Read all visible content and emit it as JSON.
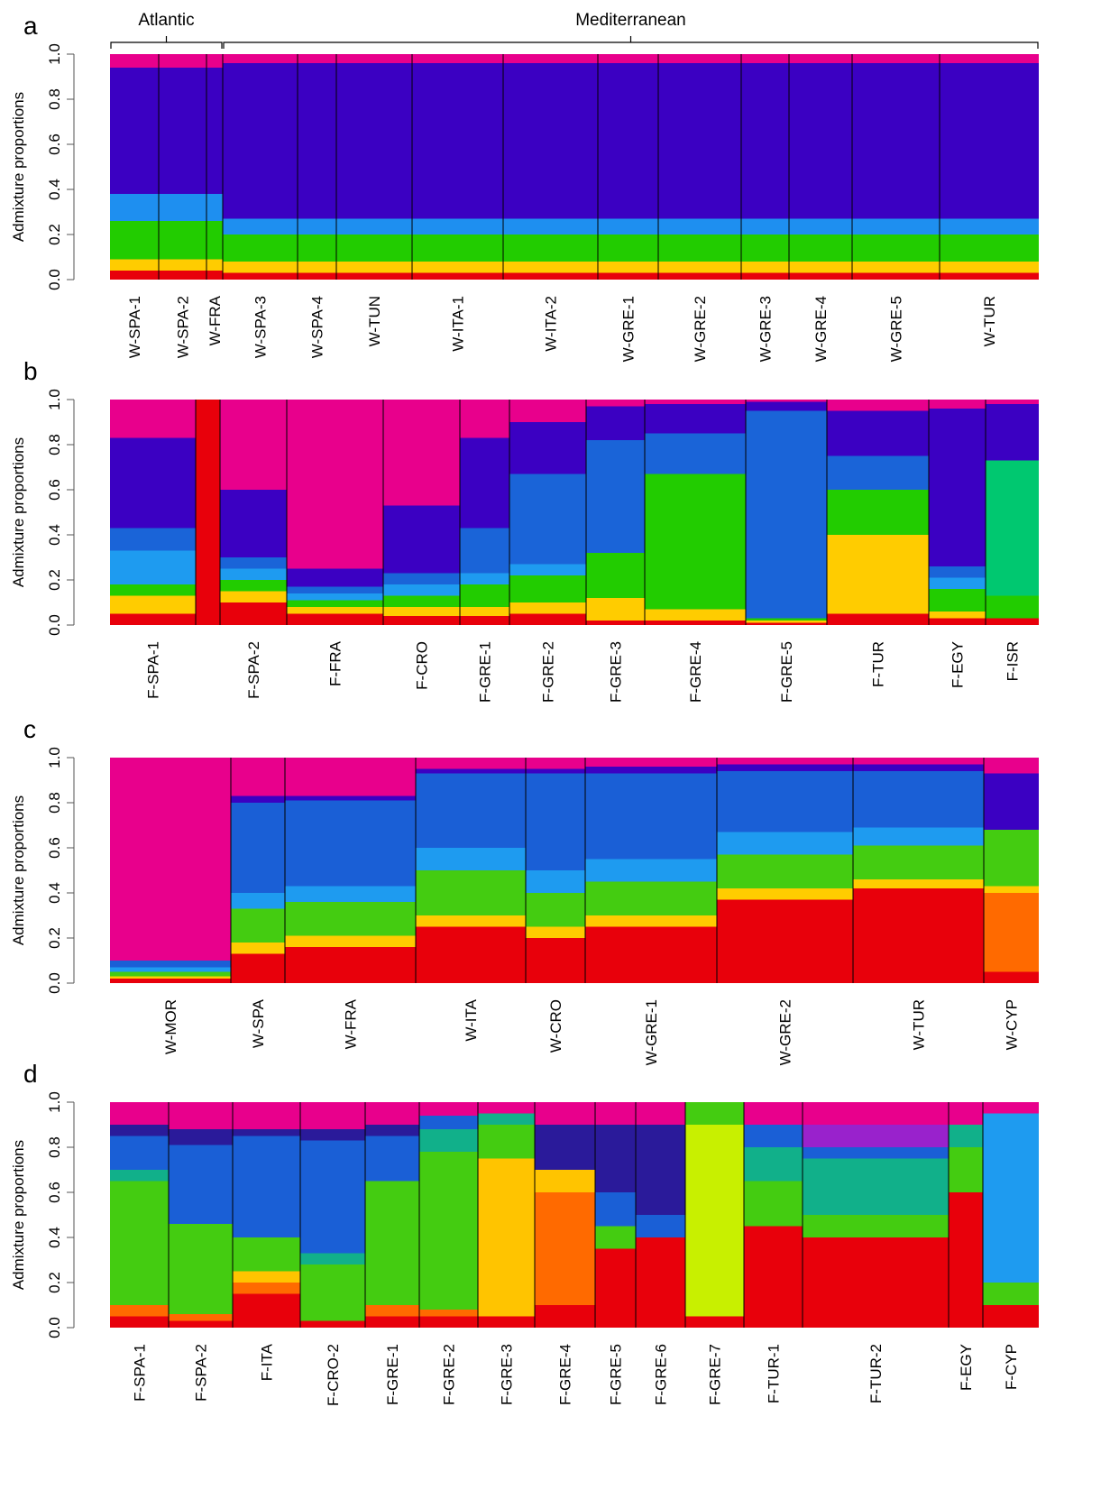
{
  "chart_data": [
    {
      "type": "stacked-bar",
      "panel": "a",
      "ylabel": "Admixture proportions",
      "brackets": [
        {
          "label": "Atlantic"
        },
        {
          "label": "Mediterranean"
        }
      ],
      "categories": [
        "W-SPA-1",
        "W-SPA-2",
        "W-FRA",
        "W-SPA-3",
        "W-SPA-4",
        "W-TUN",
        "W-ITA-1",
        "W-ITA-2",
        "W-GRE-1",
        "W-GRE-2",
        "W-GRE-3",
        "W-GRE-4",
        "W-GRE-5",
        "W-TUR"
      ],
      "ylim": [
        0,
        1
      ],
      "yticks": [
        {
          "value": 0,
          "label": "0.0"
        },
        {
          "value": 0.2,
          "label": "0.2"
        },
        {
          "value": 0.4,
          "label": "0.4"
        },
        {
          "value": 0.6,
          "label": "0.6"
        },
        {
          "value": 0.8,
          "label": "0.8"
        },
        {
          "value": 1,
          "label": "1.0"
        }
      ],
      "series": [
        {
          "color": "#e8000b",
          "values": [
            0.04,
            0.04,
            0.04,
            0.03,
            0.03,
            0.03,
            0.03,
            0.03,
            0.03,
            0.03,
            0.03,
            0.03,
            0.03,
            0.03
          ]
        },
        {
          "color": "#ffcc00",
          "values": [
            0.05,
            0.05,
            0.05,
            0.05,
            0.05,
            0.05,
            0.05,
            0.05,
            0.05,
            0.05,
            0.05,
            0.05,
            0.05,
            0.05
          ]
        },
        {
          "color": "#22cc00",
          "values": [
            0.17,
            0.17,
            0.17,
            0.12,
            0.12,
            0.12,
            0.12,
            0.12,
            0.12,
            0.12,
            0.12,
            0.12,
            0.12,
            0.12
          ]
        },
        {
          "color": "#1e8ff0",
          "values": [
            0.12,
            0.12,
            0.12,
            0.07,
            0.07,
            0.07,
            0.07,
            0.07,
            0.07,
            0.07,
            0.07,
            0.07,
            0.07,
            0.07
          ]
        },
        {
          "color": "#3b00c2",
          "values": [
            0.56,
            0.56,
            0.56,
            0.69,
            0.69,
            0.69,
            0.69,
            0.69,
            0.69,
            0.69,
            0.69,
            0.69,
            0.69,
            0.69
          ]
        },
        {
          "color": "#e8008c",
          "values": [
            0.06,
            0.06,
            0.06,
            0.04,
            0.04,
            0.04,
            0.04,
            0.04,
            0.04,
            0.04,
            0.04,
            0.04,
            0.04,
            0.04
          ]
        }
      ]
    },
    {
      "type": "stacked-bar",
      "panel": "b",
      "ylabel": "Admixture proportions",
      "categories": [
        "F-SPA-1",
        null,
        "F-SPA-2",
        "F-FRA",
        "F-CRO",
        "F-GRE-1",
        "F-GRE-2",
        "F-GRE-3",
        "F-GRE-4",
        "F-GRE-5",
        "F-TUR",
        "F-EGY",
        "F-ISR"
      ],
      "ylim": [
        0,
        1
      ],
      "yticks": [
        {
          "value": 0,
          "label": "0.0"
        },
        {
          "value": 0.2,
          "label": "0.2"
        },
        {
          "value": 0.4,
          "label": "0.4"
        },
        {
          "value": 0.6,
          "label": "0.6"
        },
        {
          "value": 0.8,
          "label": "0.8"
        },
        {
          "value": 1,
          "label": "1.0"
        }
      ],
      "series": [
        {
          "color": "#e8000b",
          "values": [
            0.05,
            1,
            0.1,
            0.05,
            0.04,
            0.04,
            0.05,
            0.02,
            0.02,
            0.01,
            0.05,
            0.03,
            0.03
          ]
        },
        {
          "color": "#ffcc00",
          "values": [
            0.08,
            0,
            0.05,
            0.03,
            0.04,
            0.04,
            0.05,
            0.1,
            0.05,
            0.01,
            0.35,
            0.03,
            0
          ]
        },
        {
          "color": "#22cc00",
          "values": [
            0.05,
            0,
            0.05,
            0.03,
            0.05,
            0.1,
            0.12,
            0.2,
            0.6,
            0.01,
            0.2,
            0.1,
            0.1
          ]
        },
        {
          "color": "#00c870",
          "values": [
            0,
            0,
            0,
            0,
            0,
            0,
            0,
            0,
            0,
            0,
            0,
            0,
            0.6
          ]
        },
        {
          "color": "#1e9bf0",
          "values": [
            0.15,
            0,
            0.05,
            0.03,
            0.05,
            0.05,
            0.05,
            0,
            0,
            0,
            0,
            0.05,
            0
          ]
        },
        {
          "color": "#1a64d8",
          "values": [
            0.1,
            0,
            0.05,
            0.03,
            0.05,
            0.2,
            0.4,
            0.5,
            0.18,
            0.92,
            0.15,
            0.05,
            0
          ]
        },
        {
          "color": "#3b00c2",
          "values": [
            0.4,
            0,
            0.3,
            0.08,
            0.3,
            0.4,
            0.23,
            0.15,
            0.13,
            0.04,
            0.2,
            0.7,
            0.25
          ]
        },
        {
          "color": "#e8008c",
          "values": [
            0.17,
            0,
            0.4,
            0.75,
            0.47,
            0.17,
            0.1,
            0.03,
            0.02,
            0.01,
            0.05,
            0.04,
            0.02
          ]
        }
      ]
    },
    {
      "type": "stacked-bar",
      "panel": "c",
      "ylabel": "Admixture proportions",
      "categories": [
        "W-MOR",
        "W-SPA",
        "W-FRA",
        "W-ITA",
        "W-CRO",
        "W-GRE-1",
        "W-GRE-2",
        "W-TUR",
        "W-CYP"
      ],
      "ylim": [
        0,
        1
      ],
      "yticks": [
        {
          "value": 0,
          "label": "0.0"
        },
        {
          "value": 0.2,
          "label": "0.2"
        },
        {
          "value": 0.4,
          "label": "0.4"
        },
        {
          "value": 0.6,
          "label": "0.6"
        },
        {
          "value": 0.8,
          "label": "0.8"
        },
        {
          "value": 1,
          "label": "1.0"
        }
      ],
      "series": [
        {
          "color": "#e8000b",
          "values": [
            0.02,
            0.13,
            0.16,
            0.25,
            0.2,
            0.25,
            0.37,
            0.42,
            0.05
          ]
        },
        {
          "color": "#ff6a00",
          "values": [
            0,
            0,
            0,
            0,
            0,
            0,
            0,
            0,
            0.35
          ]
        },
        {
          "color": "#ffcc00",
          "values": [
            0.01,
            0.05,
            0.05,
            0.05,
            0.05,
            0.05,
            0.05,
            0.04,
            0.03
          ]
        },
        {
          "color": "#44cc11",
          "values": [
            0.02,
            0.15,
            0.15,
            0.2,
            0.15,
            0.15,
            0.15,
            0.15,
            0.25
          ]
        },
        {
          "color": "#1e9bf0",
          "values": [
            0.02,
            0.07,
            0.07,
            0.1,
            0.1,
            0.1,
            0.1,
            0.08,
            0
          ]
        },
        {
          "color": "#1a5fd6",
          "values": [
            0.03,
            0.4,
            0.38,
            0.33,
            0.43,
            0.38,
            0.27,
            0.25,
            0
          ]
        },
        {
          "color": "#3b00c2",
          "values": [
            0,
            0.03,
            0.02,
            0.02,
            0.02,
            0.03,
            0.03,
            0.03,
            0.25
          ]
        },
        {
          "color": "#e8008c",
          "values": [
            0.9,
            0.17,
            0.17,
            0.05,
            0.05,
            0.04,
            0.03,
            0.03,
            0.07
          ]
        }
      ]
    },
    {
      "type": "stacked-bar",
      "panel": "d",
      "ylabel": "Admixture proportions",
      "categories": [
        "F-SPA-1",
        "F-SPA-2",
        "F-ITA",
        "F-CRO-2",
        "F-GRE-1",
        "F-GRE-2",
        "F-GRE-3",
        "F-GRE-4",
        "F-GRE-5",
        "F-GRE-6",
        "F-GRE-7",
        "F-TUR-1",
        "F-TUR-2",
        "F-EGY",
        "F-CYP"
      ],
      "ylim": [
        0,
        1
      ],
      "yticks": [
        {
          "value": 0,
          "label": "0.0"
        },
        {
          "value": 0.2,
          "label": "0.2"
        },
        {
          "value": 0.4,
          "label": "0.4"
        },
        {
          "value": 0.6,
          "label": "0.6"
        },
        {
          "value": 0.8,
          "label": "0.8"
        },
        {
          "value": 1,
          "label": "1.0"
        }
      ],
      "series": [
        {
          "color": "#e8000b",
          "values": [
            0.05,
            0.03,
            0.15,
            0.03,
            0.05,
            0.05,
            0.05,
            0.1,
            0.35,
            0.4,
            0.05,
            0.45,
            0.4,
            0.6,
            0.1
          ]
        },
        {
          "color": "#ff6a00",
          "values": [
            0.05,
            0.03,
            0.05,
            0,
            0.05,
            0.03,
            0,
            0.5,
            0,
            0,
            0,
            0,
            0,
            0,
            0
          ]
        },
        {
          "color": "#ffc400",
          "values": [
            0,
            0,
            0.05,
            0,
            0,
            0,
            0.7,
            0.1,
            0,
            0,
            0,
            0,
            0,
            0,
            0
          ]
        },
        {
          "color": "#c8f000",
          "values": [
            0,
            0,
            0,
            0,
            0,
            0,
            0,
            0,
            0,
            0,
            0.85,
            0,
            0,
            0,
            0
          ]
        },
        {
          "color": "#44cc11",
          "values": [
            0.55,
            0.4,
            0.15,
            0.25,
            0.55,
            0.7,
            0.15,
            0,
            0.1,
            0,
            0.1,
            0.2,
            0.1,
            0.2,
            0.1
          ]
        },
        {
          "color": "#11b08a",
          "values": [
            0.05,
            0,
            0,
            0.05,
            0,
            0.1,
            0.05,
            0,
            0,
            0,
            0,
            0.15,
            0.25,
            0.1,
            0
          ]
        },
        {
          "color": "#1e9bf0",
          "values": [
            0,
            0,
            0,
            0,
            0,
            0,
            0,
            0,
            0,
            0,
            0,
            0,
            0,
            0,
            0.75
          ]
        },
        {
          "color": "#1a5fd6",
          "values": [
            0.15,
            0.35,
            0.45,
            0.5,
            0.2,
            0.06,
            0,
            0,
            0.15,
            0.1,
            0,
            0.1,
            0.05,
            0,
            0
          ]
        },
        {
          "color": "#2a1a9a",
          "values": [
            0.05,
            0.07,
            0.03,
            0.05,
            0.05,
            0,
            0,
            0.2,
            0.3,
            0.4,
            0,
            0,
            0,
            0,
            0
          ]
        },
        {
          "color": "#9922cc",
          "values": [
            0,
            0,
            0,
            0,
            0,
            0,
            0,
            0,
            0,
            0,
            0,
            0,
            0.1,
            0,
            0
          ]
        },
        {
          "color": "#e8008c",
          "values": [
            0.1,
            0.12,
            0.12,
            0.12,
            0.1,
            0.06,
            0.05,
            0.1,
            0.1,
            0.1,
            0,
            0.1,
            0.1,
            0.1,
            0.05
          ]
        }
      ]
    }
  ]
}
